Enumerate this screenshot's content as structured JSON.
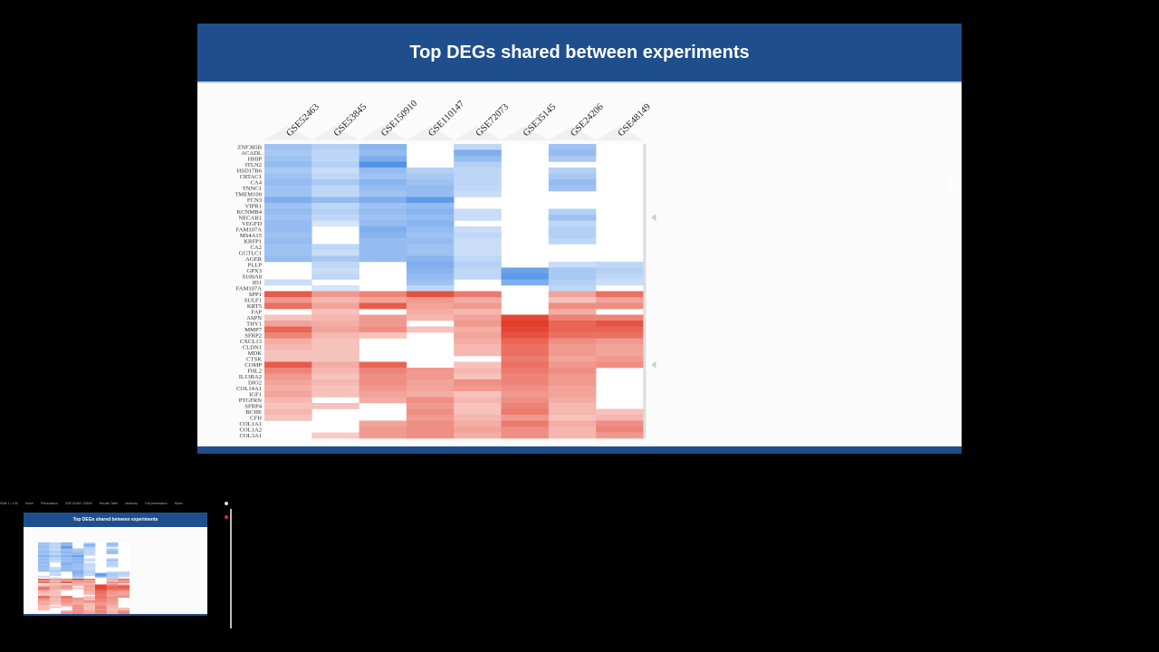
{
  "slide": {
    "title": "Top DEGs shared between experiments"
  },
  "chart_data": {
    "type": "heatmap",
    "title": "Top DEGs shared between experiments",
    "columns": [
      "GSE52463",
      "GSE53845",
      "GSE150910",
      "GSE110147",
      "GSE72073",
      "GSE35145",
      "GSE24206",
      "GSE48149"
    ],
    "rows": [
      "ZNF385B",
      "ACADL",
      "HHIP",
      "ITLN2",
      "HSD17B6",
      "CRTAC1",
      "CA4",
      "TNNC1",
      "TMEM100",
      "FCN3",
      "VIPR1",
      "KCNMB4",
      "NECAB1",
      "VEGFD",
      "FAM107A",
      "MS4A15",
      "KRFP1",
      "CA2",
      "GGTLC1",
      "AGER",
      "PLLP",
      "GPX3",
      "S100A8",
      "ID1",
      "FAM107A",
      "SPP1",
      "SULF1",
      "KRT5",
      "FAP",
      "ASPN",
      "THY1",
      "MMP7",
      "SFRP2",
      "CXCL13",
      "CLDN1",
      "MDK",
      "CTSK",
      "COMP",
      "FHL2",
      "IL13RA2",
      "DIO2",
      "COL14A1",
      "IGF1",
      "PTGFRN",
      "SFRP4",
      "BCHE",
      "CFH",
      "COL1A1",
      "COL1A2",
      "COL3A1"
    ],
    "value_scale": "negative = down-regulated (blue), positive = up-regulated (red), blank = not significant",
    "values": [
      [
        -0.45,
        -0.35,
        -0.55,
        0,
        -0.3,
        0,
        -0.45,
        0
      ],
      [
        -0.4,
        -0.3,
        -0.5,
        0,
        -0.6,
        0,
        -0.5,
        0
      ],
      [
        -0.45,
        -0.3,
        -0.6,
        0,
        -0.5,
        0,
        -0.4,
        0
      ],
      [
        -0.5,
        -0.35,
        -0.8,
        0,
        -0.35,
        0,
        0,
        0
      ],
      [
        -0.4,
        -0.25,
        -0.5,
        -0.35,
        -0.3,
        0,
        -0.35,
        0
      ],
      [
        -0.45,
        -0.3,
        -0.45,
        -0.4,
        -0.3,
        0,
        -0.4,
        0
      ],
      [
        -0.5,
        -0.4,
        -0.55,
        -0.45,
        -0.3,
        0,
        -0.5,
        0
      ],
      [
        -0.45,
        -0.3,
        -0.5,
        -0.5,
        -0.3,
        0,
        -0.45,
        0
      ],
      [
        -0.45,
        -0.3,
        -0.45,
        -0.5,
        -0.25,
        0,
        0,
        0
      ],
      [
        -0.6,
        -0.5,
        -0.6,
        -0.75,
        0,
        0,
        0,
        0
      ],
      [
        -0.45,
        -0.3,
        -0.45,
        -0.5,
        0,
        0,
        0,
        0
      ],
      [
        -0.5,
        -0.35,
        -0.5,
        -0.55,
        -0.25,
        0,
        -0.35,
        0
      ],
      [
        -0.45,
        -0.3,
        -0.45,
        -0.5,
        -0.25,
        0,
        -0.45,
        0
      ],
      [
        -0.5,
        -0.2,
        -0.5,
        -0.55,
        0,
        0,
        -0.3,
        0
      ],
      [
        -0.5,
        0,
        -0.6,
        -0.5,
        -0.25,
        0,
        -0.35,
        0
      ],
      [
        -0.45,
        0,
        -0.55,
        -0.45,
        -0.3,
        0,
        -0.35,
        0
      ],
      [
        -0.5,
        0,
        -0.5,
        -0.5,
        -0.25,
        0,
        -0.3,
        0
      ],
      [
        -0.45,
        -0.3,
        -0.5,
        -0.45,
        -0.25,
        0,
        0,
        0
      ],
      [
        -0.45,
        -0.25,
        -0.5,
        -0.45,
        -0.25,
        0,
        0,
        0
      ],
      [
        -0.5,
        -0.4,
        -0.5,
        -0.55,
        -0.3,
        0,
        0,
        0
      ],
      [
        0,
        -0.3,
        0,
        -0.6,
        -0.35,
        0,
        -0.25,
        -0.3
      ],
      [
        0,
        -0.25,
        0,
        -0.55,
        -0.3,
        -0.7,
        -0.4,
        -0.35
      ],
      [
        0,
        -0.3,
        0,
        -0.5,
        -0.3,
        -0.75,
        -0.4,
        -0.3
      ],
      [
        -0.25,
        0,
        0,
        -0.45,
        0,
        -0.6,
        -0.35,
        -0.25
      ],
      [
        0,
        -0.2,
        0,
        -0.3,
        0,
        0,
        -0.3,
        0
      ],
      [
        0.8,
        0.5,
        0.6,
        0.85,
        0.65,
        0,
        0.45,
        0.7
      ],
      [
        0.5,
        0.35,
        0.45,
        0.5,
        0.4,
        0,
        0.3,
        0.45
      ],
      [
        0.7,
        0.45,
        0.8,
        0.45,
        0.5,
        0,
        0.55,
        0.55
      ],
      [
        0,
        0.3,
        0,
        0.4,
        0.35,
        0,
        0.4,
        0
      ],
      [
        0.3,
        0.35,
        0.5,
        0.35,
        0.45,
        0.9,
        0.6,
        0.6
      ],
      [
        0.45,
        0.4,
        0.5,
        0,
        0.5,
        0.95,
        0.75,
        0.85
      ],
      [
        0.75,
        0.45,
        0.55,
        0.3,
        0.4,
        0.9,
        0.75,
        0.75
      ],
      [
        0.6,
        0.35,
        0.3,
        0,
        0.45,
        0.85,
        0.7,
        0.7
      ],
      [
        0.4,
        0.3,
        0,
        0,
        0.4,
        0.75,
        0.55,
        0.5
      ],
      [
        0.35,
        0.3,
        0,
        0,
        0.35,
        0.7,
        0.5,
        0.45
      ],
      [
        0.3,
        0.3,
        0,
        0,
        0.35,
        0.7,
        0.5,
        0.45
      ],
      [
        0.3,
        0.3,
        0,
        0,
        0,
        0.65,
        0.45,
        0.5
      ],
      [
        0.8,
        0.4,
        0.75,
        0,
        0.3,
        0.7,
        0.5,
        0.55
      ],
      [
        0.6,
        0.35,
        0.6,
        0.5,
        0.35,
        0.65,
        0.55,
        0
      ],
      [
        0.5,
        0.3,
        0.55,
        0.5,
        0.3,
        0.6,
        0.5,
        0
      ],
      [
        0.45,
        0.35,
        0.55,
        0.45,
        0.55,
        0.6,
        0.5,
        0
      ],
      [
        0.4,
        0.3,
        0.5,
        0.45,
        0.5,
        0.55,
        0.45,
        0
      ],
      [
        0.45,
        0.3,
        0.45,
        0.4,
        0.3,
        0.5,
        0.45,
        0
      ],
      [
        0.35,
        0,
        0.4,
        0.55,
        0.35,
        0.55,
        0.4,
        0
      ],
      [
        0.3,
        0.3,
        0,
        0.5,
        0.3,
        0.6,
        0.35,
        0
      ],
      [
        0.35,
        0,
        0,
        0.55,
        0.3,
        0.65,
        0.35,
        0.3
      ],
      [
        0.3,
        0,
        0,
        0.5,
        0.35,
        0.5,
        0.3,
        0.35
      ],
      [
        0,
        0,
        0.45,
        0.55,
        0.4,
        0.65,
        0.4,
        0.55
      ],
      [
        0,
        0,
        0.5,
        0.55,
        0.45,
        0.55,
        0.35,
        0.6
      ],
      [
        0,
        0.25,
        0.5,
        0.55,
        0.4,
        0.55,
        0.35,
        0.5
      ]
    ]
  },
  "thumbnail_bar": {
    "items": [
      "Slide 1 / 4:30",
      "Home",
      "Presentation",
      "GSE 52463 / 53845",
      "Results Table",
      "Heatmap",
      "Full presentation",
      "Notes"
    ]
  },
  "thumbnail": {
    "title": "Top DEGs shared between experiments"
  }
}
